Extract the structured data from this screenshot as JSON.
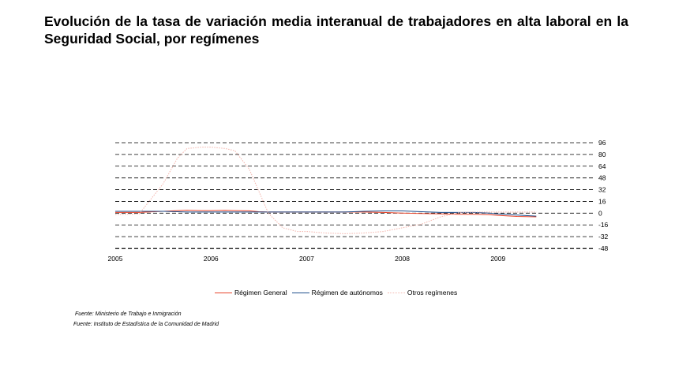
{
  "title": "Evolución de la tasa de variación media interanual de trabajadores en alta laboral en la Seguridad Social, por  regímenes",
  "chart_data": {
    "type": "line",
    "x": [
      2005.0,
      2005.25,
      2005.5,
      2005.65,
      2005.75,
      2005.9,
      2006.0,
      2006.15,
      2006.25,
      2006.4,
      2006.5,
      2006.6,
      2006.75,
      2006.9,
      2007.0,
      2007.2,
      2007.4,
      2007.6,
      2007.8,
      2008.0,
      2008.2,
      2008.4,
      2008.6,
      2008.75,
      2008.9,
      2009.0,
      2009.2,
      2009.4
    ],
    "series": [
      {
        "name": "Régimen General",
        "color": "#e8432a",
        "values": [
          1,
          1,
          2.5,
          3.5,
          4,
          3.5,
          3.5,
          3.8,
          3.5,
          3.2,
          2,
          1.5,
          1.5,
          1.5,
          1.5,
          1.5,
          1.5,
          1.5,
          1.0,
          0,
          -0.5,
          -1,
          -1.5,
          -1.5,
          -2,
          -3,
          -4.5,
          -5
        ]
      },
      {
        "name": "Régimen de autónomos",
        "color": "#1f4e8c",
        "values": [
          2.5,
          2.5,
          2.5,
          2.0,
          1.5,
          1.5,
          1.5,
          1.5,
          1.5,
          1.5,
          1.5,
          1.5,
          1.5,
          1.5,
          1.5,
          1.5,
          1.5,
          2.5,
          3,
          3,
          2,
          1,
          1,
          1,
          0,
          -1,
          -2.5,
          -4
        ]
      },
      {
        "name": "Otros regímenes",
        "color": "#f4b8b0",
        "values": [
          -2,
          -1,
          40,
          75,
          88,
          90,
          90,
          88,
          85,
          60,
          30,
          0,
          -20,
          -25,
          -25,
          -27,
          -28,
          -27,
          -25,
          -20,
          -15,
          -5,
          1,
          1.5,
          1.5,
          1.5,
          1.5,
          1.5
        ]
      }
    ],
    "xticks": [
      "2005",
      "2006",
      "2007",
      "2008",
      "2009"
    ],
    "xlim": [
      2005,
      2010
    ],
    "yticks": [
      "96",
      "80",
      "64",
      "48",
      "32",
      "16",
      "0",
      "-16",
      "-32",
      "-48"
    ],
    "ylim": [
      -48,
      96
    ],
    "grid": true,
    "legend_position": "bottom"
  },
  "sources": [
    "Fuente: Ministerio de Trabajo e Inmigración",
    "Fuente: Instituto de Estadística de la Comunidad de Madrid"
  ]
}
